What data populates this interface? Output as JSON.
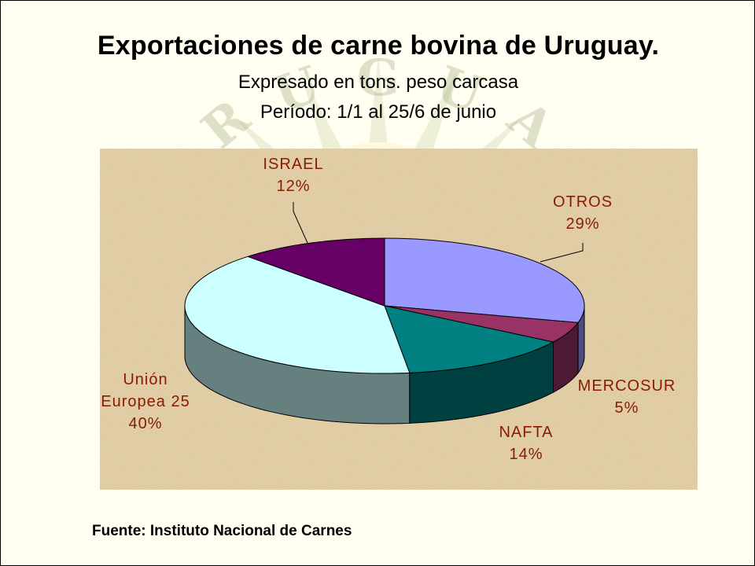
{
  "slide": {
    "title": "Exportaciones de carne bovina de Uruguay.",
    "subtitle_unit": "Expresado en tons. peso carcasa",
    "subtitle_period": "Período: 1/1 al 25/6 de junio",
    "source": "Fuente: Instituto Nacional de Carnes",
    "watermark_text": "URUGUAY"
  },
  "colors": {
    "slide_bg": "#fffef0",
    "plot_bg": "#ead7b0",
    "label_text": "#8b1a00",
    "title_text": "#000000"
  },
  "chart_data": {
    "type": "pie",
    "style": "3d-exploded-none",
    "title": "Exportaciones de carne bovina de Uruguay.",
    "unit": "%",
    "start_angle_deg": 0,
    "direction": "clockwise",
    "slices": [
      {
        "name": "OTROS",
        "label_lines": [
          "OTROS"
        ],
        "pct_label": "29%",
        "value": 29,
        "top": "#9999ff",
        "side": "#4d4d80"
      },
      {
        "name": "MERCOSUR",
        "label_lines": [
          "MERCOSUR"
        ],
        "pct_label": "5%",
        "value": 5,
        "top": "#993366",
        "side": "#4d1a33"
      },
      {
        "name": "NAFTA",
        "label_lines": [
          "NAFTA"
        ],
        "pct_label": "14%",
        "value": 14,
        "top": "#008080",
        "side": "#004040"
      },
      {
        "name": "Unión Europea 25",
        "label_lines": [
          "Unión",
          "Europea 25"
        ],
        "pct_label": "40%",
        "value": 40,
        "top": "#ccffff",
        "side": "#668080"
      },
      {
        "name": "ISRAEL",
        "label_lines": [
          "ISRAEL"
        ],
        "pct_label": "12%",
        "value": 12,
        "top": "#660066",
        "side": "#330033"
      }
    ]
  }
}
